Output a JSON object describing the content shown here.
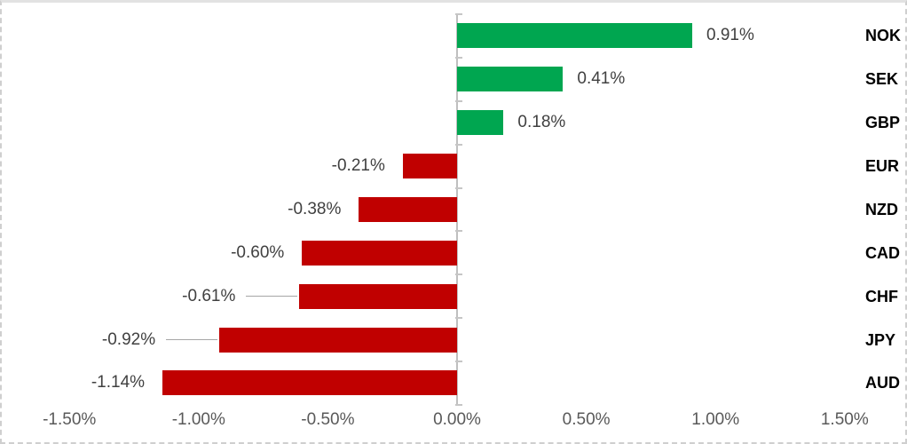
{
  "chart_data": {
    "type": "bar",
    "orientation": "horizontal",
    "title": "",
    "xlabel": "",
    "ylabel": "",
    "categories": [
      "NOK",
      "SEK",
      "GBP",
      "EUR",
      "NZD",
      "CAD",
      "CHF",
      "JPY",
      "AUD"
    ],
    "values": [
      0.91,
      0.41,
      0.18,
      -0.21,
      -0.38,
      -0.6,
      -0.61,
      -0.92,
      -1.14
    ],
    "data_labels": [
      "0.91%",
      "0.41%",
      "0.18%",
      "-0.21%",
      "-0.38%",
      "-0.60%",
      "-0.61%",
      "-0.92%",
      "-1.14%"
    ],
    "leader_line_categories": [
      "CHF",
      "JPY"
    ],
    "x_axis": {
      "tick_labels": [
        "-1.50%",
        "-1.00%",
        "-0.50%",
        "0.00%",
        "0.50%",
        "1.00%",
        "1.50%"
      ],
      "range": [
        -1.73,
        1.73
      ]
    },
    "grid": "off",
    "legend": "none",
    "colors": {
      "positive_bar": "#00A650",
      "negative_bar": "#C00000",
      "axis_line": "#BFBFBF",
      "data_label_text": "#404040",
      "axis_label_text": "#595959",
      "category_label_text": "#000000",
      "leader_line": "#A6A6A6"
    }
  }
}
